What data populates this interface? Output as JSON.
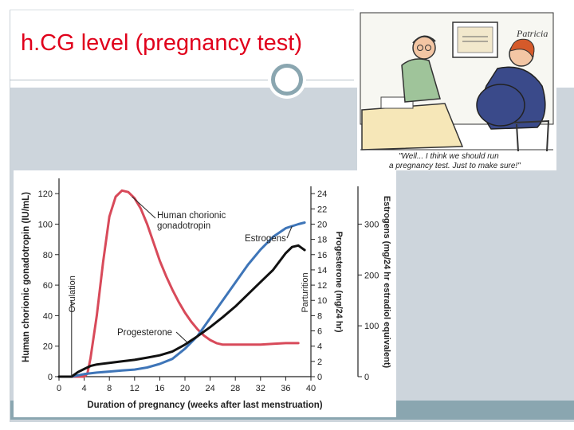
{
  "slide": {
    "title": "h.CG level (pregnancy test)"
  },
  "cartoon": {
    "signature": "Patricia",
    "caption_line1": "\"Well... I think we should run",
    "caption_line2": "a pregnancy test. Just to make sure!\""
  },
  "chart_data": {
    "type": "line",
    "xlabel": "Duration of pregnancy (weeks after last menstruation)",
    "ylabel_left": "Human chorionic gonadotropin (IU/mL)",
    "ylabel_mid": "Progesterone (mg/24 hr)",
    "ylabel_right": "Estrogens (mg/24 hr estradiol equivalent)",
    "x_ticks": [
      0,
      4,
      8,
      12,
      16,
      20,
      24,
      28,
      32,
      36,
      40
    ],
    "xlim": [
      0,
      40
    ],
    "y_left_ticks": [
      0,
      20,
      40,
      60,
      80,
      100,
      120
    ],
    "y_left_lim": [
      0,
      130
    ],
    "y_mid_ticks": [
      0,
      2,
      4,
      6,
      8,
      10,
      12,
      14,
      16,
      18,
      20,
      22,
      24
    ],
    "y_mid_lim": [
      0,
      26
    ],
    "y_right_ticks": [
      0,
      100,
      200,
      300
    ],
    "y_right_lim": [
      0,
      390
    ],
    "annotations": {
      "hcg": [
        "Human chorionic",
        "gonadotropin"
      ],
      "estrogens": "Estrogens",
      "progesterone": "Progesterone",
      "ovulation": "Ovulation",
      "parturition": "Parturition"
    },
    "series": [
      {
        "name": "Human chorionic gonadotropin",
        "color": "#d84a5a",
        "axis": "left",
        "x": [
          0,
          2,
          4,
          4.5,
          5,
          6,
          7,
          8,
          9,
          10,
          11,
          12,
          13,
          14,
          15,
          16,
          17,
          18,
          19,
          20,
          21,
          22,
          23,
          24,
          25,
          26,
          28,
          30,
          32,
          34,
          36,
          38
        ],
        "y": [
          0,
          0,
          0,
          2,
          12,
          40,
          75,
          105,
          118,
          122,
          121,
          117,
          110,
          100,
          88,
          76,
          66,
          57,
          49,
          42,
          36,
          31,
          27,
          24,
          22,
          21,
          21,
          21,
          21,
          21.5,
          22,
          22
        ]
      },
      {
        "name": "Estrogens",
        "color": "#3e75b8",
        "axis": "right",
        "x": [
          0,
          2,
          4,
          6,
          8,
          10,
          12,
          14,
          16,
          18,
          20,
          22,
          24,
          26,
          28,
          30,
          32,
          34,
          36,
          38,
          39
        ],
        "y": [
          0,
          0,
          5,
          8,
          10,
          12,
          14,
          18,
          25,
          35,
          55,
          80,
          115,
          150,
          185,
          220,
          250,
          275,
          292,
          300,
          303
        ]
      },
      {
        "name": "Progesterone",
        "color": "#111111",
        "axis": "mid",
        "x": [
          0,
          2,
          3,
          4,
          5,
          6,
          8,
          10,
          12,
          14,
          16,
          18,
          20,
          22,
          24,
          26,
          28,
          30,
          32,
          34,
          36,
          37,
          38,
          39
        ],
        "y": [
          0,
          0,
          0.6,
          1,
          1.4,
          1.6,
          1.8,
          2.0,
          2.2,
          2.5,
          2.8,
          3.3,
          4.2,
          5.3,
          6.5,
          7.8,
          9.2,
          10.8,
          12.4,
          14,
          16.2,
          17,
          17.2,
          16.6
        ]
      }
    ]
  }
}
